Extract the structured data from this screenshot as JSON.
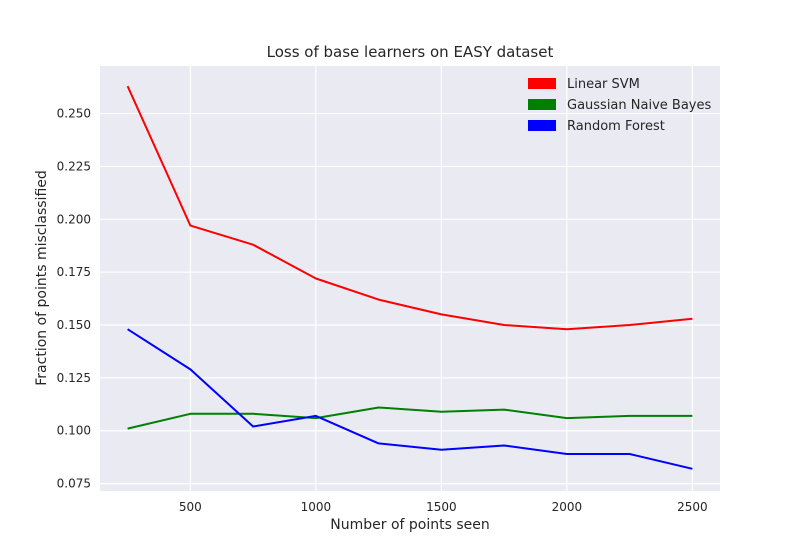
{
  "chart_data": {
    "type": "line",
    "title": "Loss of base learners on EASY dataset",
    "xlabel": "Number of points seen",
    "ylabel": "Fraction of points misclassified",
    "x": [
      250,
      500,
      750,
      1000,
      1250,
      1500,
      1750,
      2000,
      2250,
      2500
    ],
    "xlim": [
      140,
      2610
    ],
    "ylim": [
      0.0715,
      0.2725
    ],
    "xticks": [
      500,
      1000,
      1500,
      2000,
      2500
    ],
    "xtick_labels": [
      "500",
      "1000",
      "1500",
      "2000",
      "2500"
    ],
    "yticks": [
      0.075,
      0.1,
      0.125,
      0.15,
      0.175,
      0.2,
      0.225,
      0.25
    ],
    "ytick_labels": [
      "0.075",
      "0.100",
      "0.125",
      "0.150",
      "0.175",
      "0.200",
      "0.225",
      "0.250"
    ],
    "grid": true,
    "legend_position": "top-right",
    "series": [
      {
        "name": "Linear SVM",
        "color": "#ff0000",
        "values": [
          0.263,
          0.197,
          0.188,
          0.172,
          0.162,
          0.155,
          0.15,
          0.148,
          0.15,
          0.153
        ]
      },
      {
        "name": "Gaussian Naive Bayes",
        "color": "#008000",
        "values": [
          0.101,
          0.108,
          0.108,
          0.106,
          0.111,
          0.109,
          0.11,
          0.106,
          0.107,
          0.107
        ]
      },
      {
        "name": "Random Forest",
        "color": "#0000ff",
        "values": [
          0.148,
          0.129,
          0.102,
          0.107,
          0.094,
          0.091,
          0.093,
          0.089,
          0.089,
          0.082
        ]
      }
    ]
  }
}
